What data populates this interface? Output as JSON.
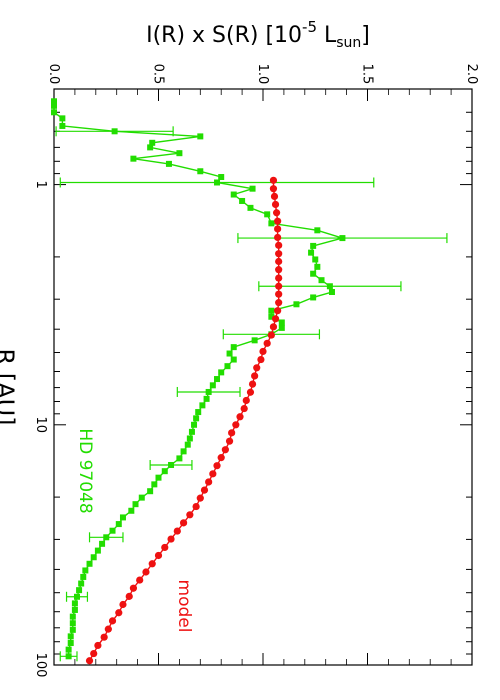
{
  "chart_data": {
    "type": "line",
    "orientation": "rotated-90",
    "title": "",
    "xlabel": "R [AU]",
    "ylabel_parts": {
      "main": "I(R) x S(R) [10",
      "exponent": "-5",
      "unit": " L",
      "unit_subscript": "sun",
      "close": "]"
    },
    "x_scale": "log",
    "xlim": [
      0.4,
      100
    ],
    "ylim": [
      0.0,
      2.0
    ],
    "x_ticks": [
      {
        "value": 1,
        "label": "1"
      },
      {
        "value": 10,
        "label": "10"
      },
      {
        "value": 100,
        "label": "100"
      }
    ],
    "y_ticks": [
      {
        "value": 0.0,
        "label": "0.0"
      },
      {
        "value": 0.5,
        "label": "0.5"
      },
      {
        "value": 1.0,
        "label": "1.0"
      },
      {
        "value": 1.5,
        "label": "1.5"
      },
      {
        "value": 2.0,
        "label": "2.0"
      }
    ],
    "grid": false,
    "series": [
      {
        "name": "HD 97048",
        "color": "#22dd00",
        "marker": "square",
        "points": [
          {
            "x": 0.45,
            "y": 0.0
          },
          {
            "x": 0.47,
            "y": 0.0
          },
          {
            "x": 0.5,
            "y": 0.0
          },
          {
            "x": 0.53,
            "y": 0.04
          },
          {
            "x": 0.57,
            "y": 0.04
          },
          {
            "x": 0.6,
            "y": 0.29,
            "err": 0.28
          },
          {
            "x": 0.63,
            "y": 0.7
          },
          {
            "x": 0.67,
            "y": 0.47
          },
          {
            "x": 0.7,
            "y": 0.46
          },
          {
            "x": 0.74,
            "y": 0.6
          },
          {
            "x": 0.78,
            "y": 0.38
          },
          {
            "x": 0.82,
            "y": 0.55
          },
          {
            "x": 0.88,
            "y": 0.7
          },
          {
            "x": 0.93,
            "y": 0.8
          },
          {
            "x": 0.98,
            "y": 0.78,
            "err": 0.75
          },
          {
            "x": 1.04,
            "y": 0.95
          },
          {
            "x": 1.1,
            "y": 0.86
          },
          {
            "x": 1.17,
            "y": 0.9
          },
          {
            "x": 1.25,
            "y": 0.94
          },
          {
            "x": 1.33,
            "y": 1.02
          },
          {
            "x": 1.45,
            "y": 1.04
          },
          {
            "x": 1.55,
            "y": 1.26
          },
          {
            "x": 1.67,
            "y": 1.38,
            "err": 0.5
          },
          {
            "x": 1.8,
            "y": 1.24
          },
          {
            "x": 1.92,
            "y": 1.23
          },
          {
            "x": 2.05,
            "y": 1.25
          },
          {
            "x": 2.2,
            "y": 1.26
          },
          {
            "x": 2.35,
            "y": 1.24
          },
          {
            "x": 2.5,
            "y": 1.28
          },
          {
            "x": 2.65,
            "y": 1.32,
            "err": 0.34
          },
          {
            "x": 2.8,
            "y": 1.33
          },
          {
            "x": 2.95,
            "y": 1.24
          },
          {
            "x": 3.15,
            "y": 1.16
          },
          {
            "x": 3.35,
            "y": 1.04
          },
          {
            "x": 3.55,
            "y": 1.04
          },
          {
            "x": 3.75,
            "y": 1.09
          },
          {
            "x": 3.95,
            "y": 1.09
          },
          {
            "x": 4.2,
            "y": 1.04,
            "err": 0.23
          },
          {
            "x": 4.45,
            "y": 0.96
          },
          {
            "x": 4.75,
            "y": 0.86
          },
          {
            "x": 5.05,
            "y": 0.84
          },
          {
            "x": 5.35,
            "y": 0.86
          },
          {
            "x": 5.7,
            "y": 0.83
          },
          {
            "x": 6.05,
            "y": 0.8
          },
          {
            "x": 6.45,
            "y": 0.78
          },
          {
            "x": 6.85,
            "y": 0.76
          },
          {
            "x": 7.3,
            "y": 0.74,
            "err": 0.15
          },
          {
            "x": 7.8,
            "y": 0.73
          },
          {
            "x": 8.3,
            "y": 0.71
          },
          {
            "x": 8.85,
            "y": 0.69
          },
          {
            "x": 9.4,
            "y": 0.68
          },
          {
            "x": 10.0,
            "y": 0.67
          },
          {
            "x": 10.7,
            "y": 0.66
          },
          {
            "x": 11.4,
            "y": 0.65
          },
          {
            "x": 12.1,
            "y": 0.64
          },
          {
            "x": 12.9,
            "y": 0.62
          },
          {
            "x": 13.8,
            "y": 0.6
          },
          {
            "x": 14.7,
            "y": 0.56,
            "err": 0.1
          },
          {
            "x": 15.6,
            "y": 0.53
          },
          {
            "x": 16.6,
            "y": 0.5
          },
          {
            "x": 17.7,
            "y": 0.48
          },
          {
            "x": 18.9,
            "y": 0.46
          },
          {
            "x": 20.1,
            "y": 0.42
          },
          {
            "x": 21.4,
            "y": 0.39
          },
          {
            "x": 22.8,
            "y": 0.37
          },
          {
            "x": 24.3,
            "y": 0.33
          },
          {
            "x": 25.9,
            "y": 0.31
          },
          {
            "x": 27.6,
            "y": 0.28
          },
          {
            "x": 29.4,
            "y": 0.25,
            "err": 0.08
          },
          {
            "x": 31.3,
            "y": 0.23
          },
          {
            "x": 33.4,
            "y": 0.21
          },
          {
            "x": 35.6,
            "y": 0.19
          },
          {
            "x": 37.9,
            "y": 0.17
          },
          {
            "x": 40.4,
            "y": 0.15
          },
          {
            "x": 43.0,
            "y": 0.14
          },
          {
            "x": 45.8,
            "y": 0.13
          },
          {
            "x": 48.8,
            "y": 0.12
          },
          {
            "x": 52.0,
            "y": 0.11,
            "err": 0.05
          },
          {
            "x": 55.4,
            "y": 0.1
          },
          {
            "x": 59.0,
            "y": 0.1
          },
          {
            "x": 62.9,
            "y": 0.09
          },
          {
            "x": 67.0,
            "y": 0.09
          },
          {
            "x": 71.4,
            "y": 0.09
          },
          {
            "x": 76.0,
            "y": 0.08
          },
          {
            "x": 81.0,
            "y": 0.08
          },
          {
            "x": 86.3,
            "y": 0.07
          },
          {
            "x": 92.0,
            "y": 0.07,
            "err": 0.04
          }
        ]
      },
      {
        "name": "model",
        "color": "#ee1111",
        "marker": "circle",
        "points": [
          {
            "x": 0.96,
            "y": 1.05
          },
          {
            "x": 1.04,
            "y": 1.05
          },
          {
            "x": 1.12,
            "y": 1.055
          },
          {
            "x": 1.21,
            "y": 1.06
          },
          {
            "x": 1.31,
            "y": 1.065
          },
          {
            "x": 1.42,
            "y": 1.07
          },
          {
            "x": 1.53,
            "y": 1.07
          },
          {
            "x": 1.66,
            "y": 1.07
          },
          {
            "x": 1.79,
            "y": 1.075
          },
          {
            "x": 1.94,
            "y": 1.075
          },
          {
            "x": 2.09,
            "y": 1.075
          },
          {
            "x": 2.26,
            "y": 1.075
          },
          {
            "x": 2.45,
            "y": 1.075
          },
          {
            "x": 2.65,
            "y": 1.075
          },
          {
            "x": 2.86,
            "y": 1.075
          },
          {
            "x": 3.1,
            "y": 1.075
          },
          {
            "x": 3.35,
            "y": 1.07
          },
          {
            "x": 3.62,
            "y": 1.06
          },
          {
            "x": 3.91,
            "y": 1.05
          },
          {
            "x": 4.23,
            "y": 1.04
          },
          {
            "x": 4.58,
            "y": 1.02
          },
          {
            "x": 4.95,
            "y": 1.0
          },
          {
            "x": 5.35,
            "y": 0.99
          },
          {
            "x": 5.79,
            "y": 0.97
          },
          {
            "x": 6.26,
            "y": 0.96
          },
          {
            "x": 6.77,
            "y": 0.95
          },
          {
            "x": 7.32,
            "y": 0.94
          },
          {
            "x": 7.92,
            "y": 0.92
          },
          {
            "x": 8.56,
            "y": 0.91
          },
          {
            "x": 9.26,
            "y": 0.89
          },
          {
            "x": 10.0,
            "y": 0.87
          },
          {
            "x": 10.8,
            "y": 0.85
          },
          {
            "x": 11.7,
            "y": 0.84
          },
          {
            "x": 12.7,
            "y": 0.82
          },
          {
            "x": 13.7,
            "y": 0.8
          },
          {
            "x": 14.8,
            "y": 0.78
          },
          {
            "x": 16.0,
            "y": 0.76
          },
          {
            "x": 17.3,
            "y": 0.74
          },
          {
            "x": 18.7,
            "y": 0.72
          },
          {
            "x": 20.2,
            "y": 0.7
          },
          {
            "x": 21.9,
            "y": 0.68
          },
          {
            "x": 23.7,
            "y": 0.65
          },
          {
            "x": 25.6,
            "y": 0.62
          },
          {
            "x": 27.7,
            "y": 0.59
          },
          {
            "x": 29.9,
            "y": 0.56
          },
          {
            "x": 32.4,
            "y": 0.53
          },
          {
            "x": 35.0,
            "y": 0.5
          },
          {
            "x": 37.9,
            "y": 0.47
          },
          {
            "x": 41.0,
            "y": 0.44
          },
          {
            "x": 44.3,
            "y": 0.41
          },
          {
            "x": 47.9,
            "y": 0.38
          },
          {
            "x": 51.8,
            "y": 0.36
          },
          {
            "x": 56.0,
            "y": 0.33
          },
          {
            "x": 60.6,
            "y": 0.31
          },
          {
            "x": 65.5,
            "y": 0.28
          },
          {
            "x": 70.9,
            "y": 0.26
          },
          {
            "x": 76.6,
            "y": 0.24
          },
          {
            "x": 82.9,
            "y": 0.21
          },
          {
            "x": 89.6,
            "y": 0.19
          },
          {
            "x": 96.0,
            "y": 0.17
          }
        ]
      }
    ],
    "annotations": [
      {
        "text": "HD 97048",
        "color": "#22dd00"
      },
      {
        "text": "model",
        "color": "#ee1111"
      }
    ]
  }
}
